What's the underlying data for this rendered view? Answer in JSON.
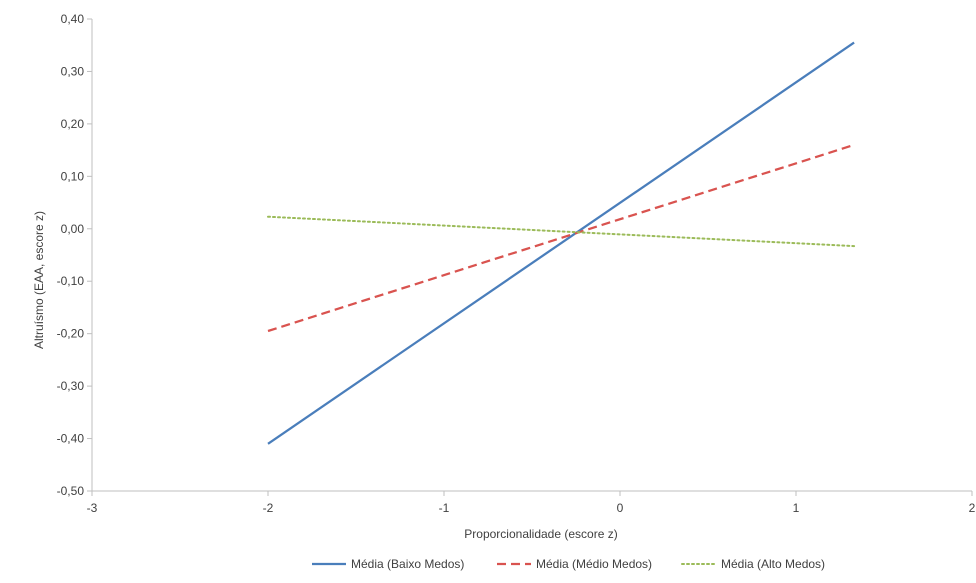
{
  "chart_data": {
    "type": "line",
    "title": "",
    "xlabel": "Proporcionalidade (escore z)",
    "ylabel": "Altruísmo (EAA, escore z)",
    "xlim": [
      -3,
      2
    ],
    "ylim": [
      -0.5,
      0.4
    ],
    "x_ticks": [
      -3,
      -2,
      -1,
      0,
      1,
      2
    ],
    "x_tick_labels": [
      "-3",
      "-2",
      "-1",
      "0",
      "1",
      "2"
    ],
    "y_ticks": [
      -0.5,
      -0.4,
      -0.3,
      -0.2,
      -0.1,
      0.0,
      0.1,
      0.2,
      0.3,
      0.4
    ],
    "y_tick_labels": [
      "-0,50",
      "-0,40",
      "-0,30",
      "-0,20",
      "-0,10",
      "0,00",
      "0,10",
      "0,20",
      "0,30",
      "0,40"
    ],
    "grid": false,
    "legend_position": "bottom",
    "series": [
      {
        "name": "Média (Baixo Medos)",
        "x": [
          -2.0,
          1.33
        ],
        "y": [
          -0.41,
          0.355
        ],
        "color": "#4a7ebb",
        "style": "solid"
      },
      {
        "name": "Média (Médio Medos)",
        "x": [
          -2.0,
          1.33
        ],
        "y": [
          -0.195,
          0.16
        ],
        "color": "#d9534f",
        "style": "dashed"
      },
      {
        "name": "Média (Alto Medos)",
        "x": [
          -2.0,
          1.33
        ],
        "y": [
          0.023,
          -0.033
        ],
        "color": "#9bbb59",
        "style": "dotted"
      }
    ]
  }
}
